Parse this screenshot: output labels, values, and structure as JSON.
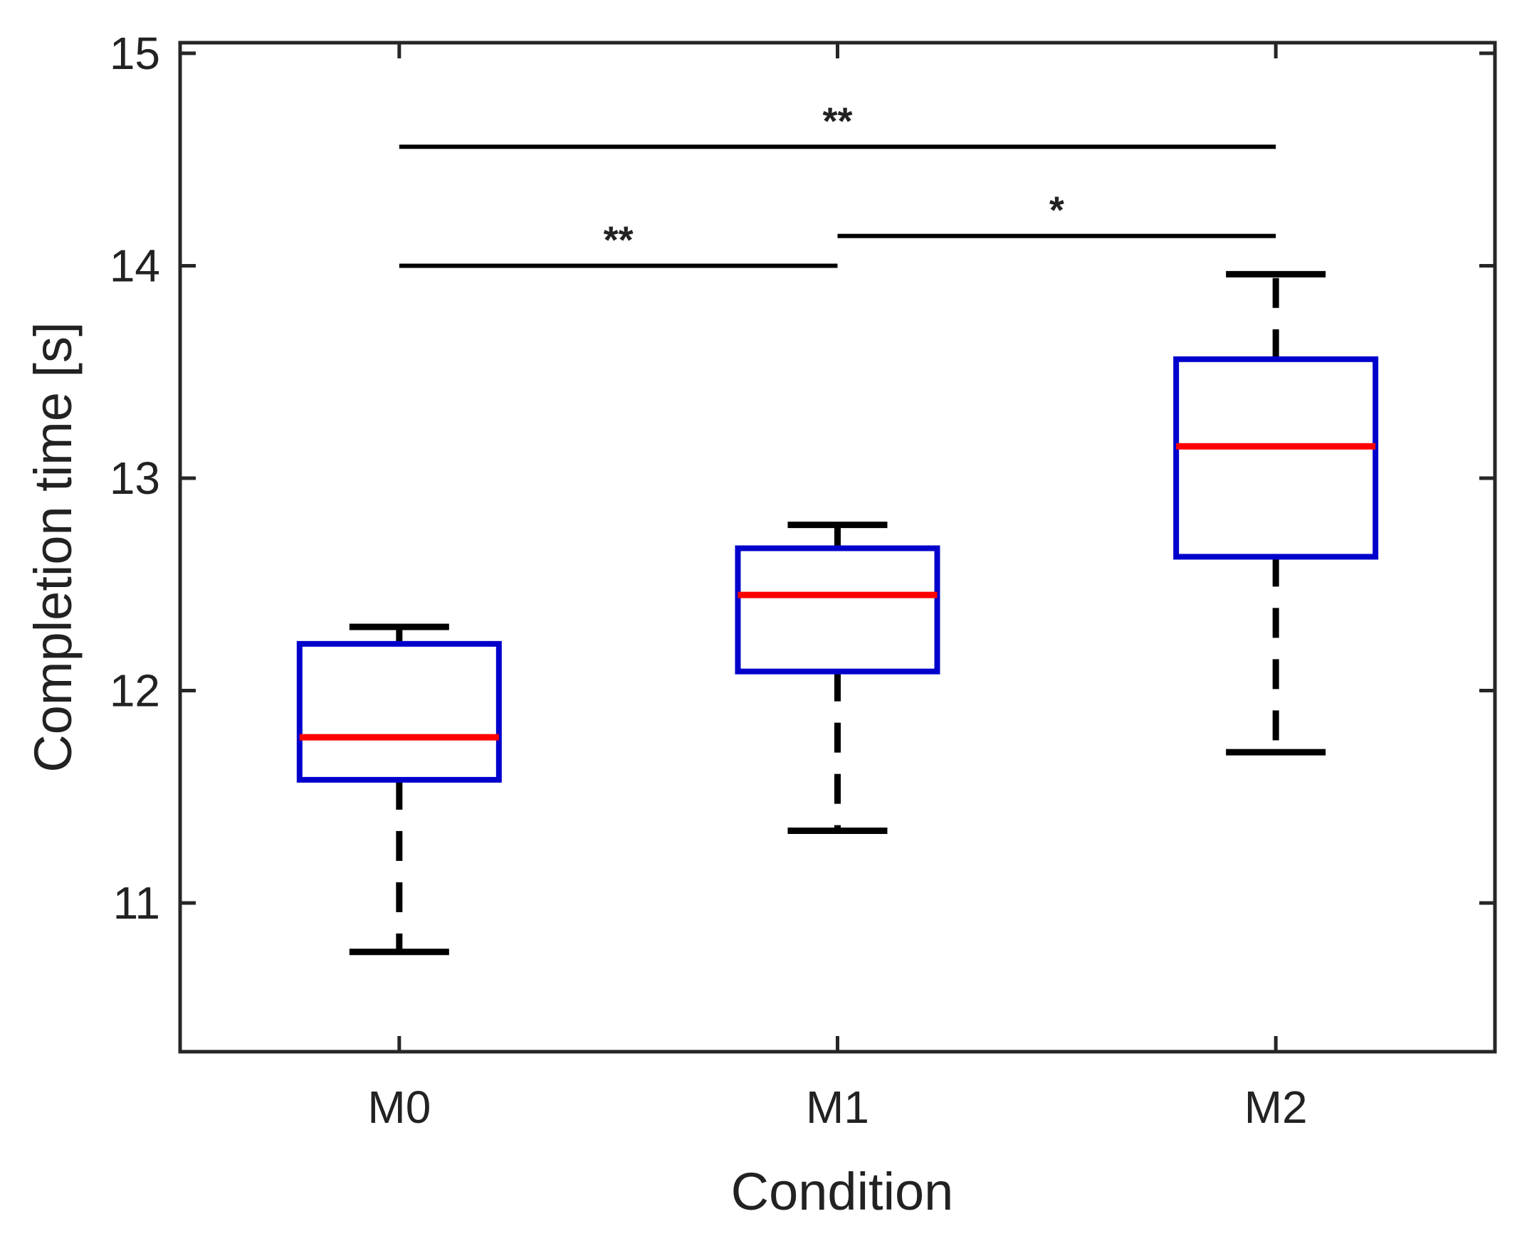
{
  "chart_data": {
    "type": "boxplot",
    "title": "",
    "xlabel": "Condition",
    "ylabel": "Completion time [s]",
    "categories": [
      "M0",
      "M1",
      "M2"
    ],
    "ylim": [
      10.3,
      15.05
    ],
    "yticks": [
      11,
      12,
      13,
      14,
      15
    ],
    "ytick_labels": [
      "11",
      "12",
      "13",
      "14",
      "15"
    ],
    "boxes": [
      {
        "category": "M0",
        "whisker_low": 10.77,
        "q1": 11.58,
        "median": 11.78,
        "q3": 12.22,
        "whisker_high": 12.3
      },
      {
        "category": "M1",
        "whisker_low": 11.34,
        "q1": 12.09,
        "median": 12.45,
        "q3": 12.67,
        "whisker_high": 12.78
      },
      {
        "category": "M2",
        "whisker_low": 11.71,
        "q1": 12.63,
        "median": 13.15,
        "q3": 13.56,
        "whisker_high": 13.96
      }
    ],
    "significance": [
      {
        "from": "M0",
        "to": "M2",
        "y": 14.56,
        "label": "**"
      },
      {
        "from": "M0",
        "to": "M1",
        "y": 14.0,
        "label": "**"
      },
      {
        "from": "M1",
        "to": "M2",
        "y": 14.14,
        "label": "*"
      }
    ],
    "colors": {
      "box": "#0000cc",
      "median": "#ff0000",
      "whisker": "#000000",
      "axes": "#262626"
    },
    "grid": false
  }
}
